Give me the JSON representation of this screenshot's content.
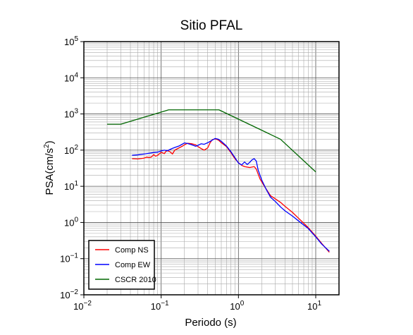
{
  "chart_data": {
    "type": "line",
    "title": "Sitio PFAL",
    "xlabel": "Periodo (s)",
    "ylabel_main": "PSA(cm/s",
    "ylabel_sup": "2",
    "ylabel_close": ")",
    "x_scale": "log",
    "y_scale": "log",
    "xlim": [
      0.01,
      20
    ],
    "ylim": [
      0.01,
      100000
    ],
    "grid": true,
    "legend_position": "bottom-left",
    "x_ticks": [
      {
        "base": "10",
        "exp": "−2",
        "value": 0.01
      },
      {
        "base": "10",
        "exp": "−1",
        "value": 0.1
      },
      {
        "base": "10",
        "exp": "0",
        "value": 1
      },
      {
        "base": "10",
        "exp": "1",
        "value": 10
      }
    ],
    "y_ticks": [
      {
        "base": "10",
        "exp": "−2",
        "value": 0.01
      },
      {
        "base": "10",
        "exp": "−1",
        "value": 0.1
      },
      {
        "base": "10",
        "exp": "0",
        "value": 1
      },
      {
        "base": "10",
        "exp": "1",
        "value": 10
      },
      {
        "base": "10",
        "exp": "2",
        "value": 100
      },
      {
        "base": "10",
        "exp": "3",
        "value": 1000
      },
      {
        "base": "10",
        "exp": "4",
        "value": 10000
      },
      {
        "base": "10",
        "exp": "5",
        "value": 100000
      }
    ],
    "series": [
      {
        "name": "Comp NS",
        "color": "#ff0000",
        "points": [
          [
            0.042,
            58
          ],
          [
            0.05,
            57
          ],
          [
            0.06,
            60
          ],
          [
            0.065,
            64
          ],
          [
            0.07,
            62
          ],
          [
            0.075,
            65
          ],
          [
            0.08,
            75
          ],
          [
            0.085,
            68
          ],
          [
            0.09,
            72
          ],
          [
            0.1,
            87
          ],
          [
            0.11,
            80
          ],
          [
            0.115,
            92
          ],
          [
            0.12,
            98
          ],
          [
            0.13,
            90
          ],
          [
            0.14,
            78
          ],
          [
            0.15,
            100
          ],
          [
            0.17,
            115
          ],
          [
            0.19,
            130
          ],
          [
            0.2,
            140
          ],
          [
            0.22,
            155
          ],
          [
            0.25,
            150
          ],
          [
            0.28,
            140
          ],
          [
            0.3,
            125
          ],
          [
            0.33,
            110
          ],
          [
            0.36,
            100
          ],
          [
            0.4,
            115
          ],
          [
            0.43,
            160
          ],
          [
            0.46,
            195
          ],
          [
            0.5,
            205
          ],
          [
            0.55,
            190
          ],
          [
            0.6,
            160
          ],
          [
            0.7,
            125
          ],
          [
            0.8,
            85
          ],
          [
            0.9,
            58
          ],
          [
            1.0,
            45
          ],
          [
            1.1,
            38
          ],
          [
            1.2,
            35
          ],
          [
            1.4,
            33
          ],
          [
            1.6,
            35
          ],
          [
            1.7,
            30
          ],
          [
            1.9,
            16
          ],
          [
            2.2,
            9.5
          ],
          [
            2.6,
            5.5
          ],
          [
            3.0,
            4.5
          ],
          [
            3.5,
            3.6
          ],
          [
            4.0,
            2.8
          ],
          [
            5.0,
            1.9
          ],
          [
            6.0,
            1.3
          ],
          [
            8.0,
            0.72
          ],
          [
            10.0,
            0.42
          ],
          [
            12.0,
            0.26
          ],
          [
            15.0,
            0.15
          ]
        ]
      },
      {
        "name": "Comp EW",
        "color": "#0000ff",
        "points": [
          [
            0.042,
            72
          ],
          [
            0.05,
            74
          ],
          [
            0.06,
            78
          ],
          [
            0.07,
            82
          ],
          [
            0.08,
            86
          ],
          [
            0.09,
            88
          ],
          [
            0.1,
            95
          ],
          [
            0.11,
            100
          ],
          [
            0.12,
            96
          ],
          [
            0.13,
            104
          ],
          [
            0.14,
            112
          ],
          [
            0.15,
            118
          ],
          [
            0.17,
            130
          ],
          [
            0.19,
            148
          ],
          [
            0.2,
            158
          ],
          [
            0.22,
            152
          ],
          [
            0.25,
            140
          ],
          [
            0.28,
            128
          ],
          [
            0.3,
            136
          ],
          [
            0.33,
            150
          ],
          [
            0.36,
            145
          ],
          [
            0.4,
            160
          ],
          [
            0.45,
            185
          ],
          [
            0.5,
            210
          ],
          [
            0.55,
            200
          ],
          [
            0.6,
            175
          ],
          [
            0.7,
            130
          ],
          [
            0.8,
            90
          ],
          [
            0.9,
            62
          ],
          [
            1.0,
            44
          ],
          [
            1.1,
            39
          ],
          [
            1.2,
            47
          ],
          [
            1.3,
            40
          ],
          [
            1.4,
            46
          ],
          [
            1.5,
            54
          ],
          [
            1.6,
            58
          ],
          [
            1.7,
            50
          ],
          [
            1.8,
            28
          ],
          [
            2.0,
            15
          ],
          [
            2.3,
            8
          ],
          [
            2.6,
            5
          ],
          [
            3.0,
            3.8
          ],
          [
            3.5,
            2.7
          ],
          [
            4.0,
            2.1
          ],
          [
            5.0,
            1.5
          ],
          [
            6.0,
            1.1
          ],
          [
            8.0,
            0.68
          ],
          [
            10.0,
            0.4
          ],
          [
            12.0,
            0.25
          ],
          [
            15.0,
            0.16
          ]
        ]
      },
      {
        "name": "CSCR 2010",
        "color": "#006600",
        "points": [
          [
            0.02,
            520
          ],
          [
            0.03,
            520
          ],
          [
            0.125,
            1300
          ],
          [
            0.56,
            1300
          ],
          [
            3.5,
            200
          ],
          [
            10.0,
            25
          ]
        ]
      }
    ]
  }
}
